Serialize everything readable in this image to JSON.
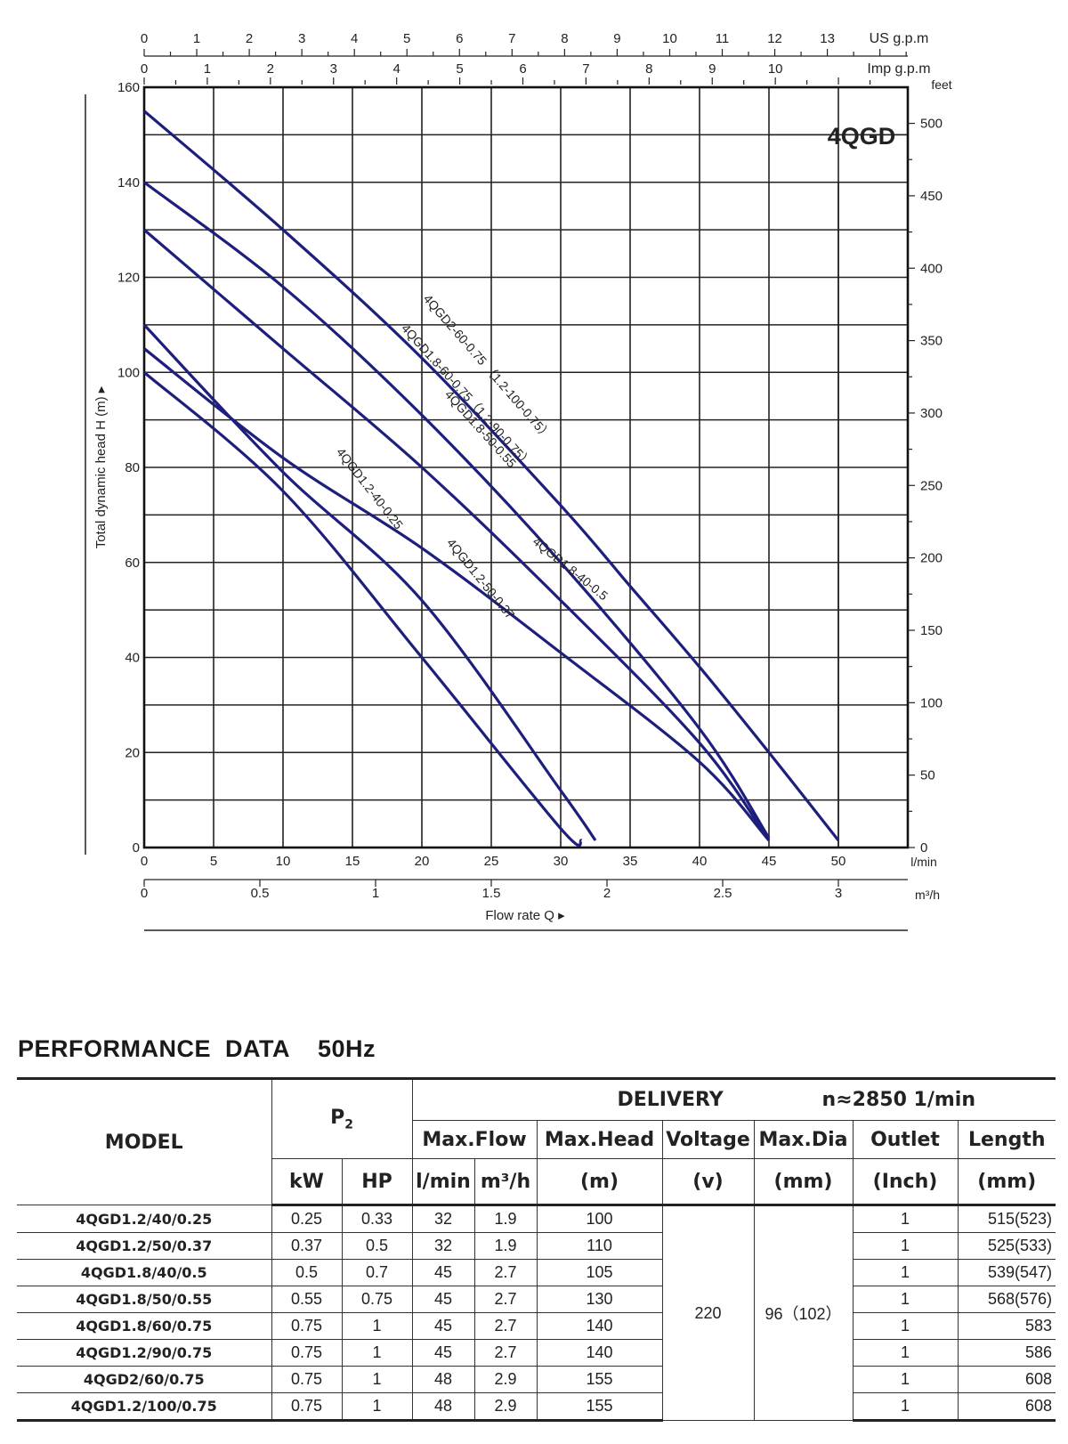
{
  "chart_data": {
    "type": "line",
    "title": "4QGD",
    "xlabel": "Flow  rate  Q ▸",
    "ylabel": "Total dynamic head H (m) ▸",
    "xlim": [
      0,
      55
    ],
    "ylim": [
      0,
      160
    ],
    "x_ticks": [
      "0",
      "5",
      "10",
      "15",
      "20",
      "25",
      "30",
      "35",
      "40",
      "45",
      "50"
    ],
    "x_unit": "l/min",
    "y_ticks": [
      "0",
      "20",
      "40",
      "60",
      "80",
      "100",
      "120",
      "140",
      "160"
    ],
    "secondary_axes": {
      "us_gpm": {
        "unit": "US g.p.m",
        "ticks": [
          "0",
          "1",
          "2",
          "3",
          "4",
          "5",
          "6",
          "7",
          "8",
          "9",
          "10",
          "11",
          "12",
          "13"
        ]
      },
      "imp_gpm": {
        "unit": "Imp g.p.m",
        "ticks": [
          "0",
          "1",
          "2",
          "3",
          "4",
          "5",
          "6",
          "7",
          "8",
          "9",
          "10"
        ]
      },
      "m3h": {
        "unit": "m³/h",
        "ticks": [
          "0",
          "0.5",
          "1",
          "1.5",
          "2",
          "2.5",
          "3"
        ]
      },
      "feet": {
        "unit": "feet",
        "ticks": [
          "0",
          "50",
          "100",
          "150",
          "200",
          "250",
          "300",
          "350",
          "400",
          "450",
          "500"
        ]
      }
    },
    "series": [
      {
        "name": "4QGD2-60-0.75 （1.2-100-0.75）",
        "points": [
          [
            0,
            155
          ],
          [
            10,
            130
          ],
          [
            20,
            103
          ],
          [
            30,
            72
          ],
          [
            35,
            55
          ],
          [
            40,
            38
          ],
          [
            45,
            20
          ],
          [
            50,
            1.5
          ]
        ]
      },
      {
        "name": "4QGD1.8-60-0.75（1.2-90-0.75）",
        "points": [
          [
            0,
            140
          ],
          [
            10,
            118
          ],
          [
            20,
            91
          ],
          [
            30,
            60
          ],
          [
            40,
            25
          ],
          [
            45,
            2
          ]
        ]
      },
      {
        "name": "4QGD1.8-50-0.55",
        "points": [
          [
            0,
            130
          ],
          [
            10,
            105
          ],
          [
            20,
            80
          ],
          [
            30,
            52
          ],
          [
            40,
            22
          ],
          [
            45,
            1.5
          ]
        ]
      },
      {
        "name": "4QGD1.8-40-0.5",
        "points": [
          [
            0,
            105
          ],
          [
            10,
            82
          ],
          [
            20,
            63
          ],
          [
            30,
            41
          ],
          [
            40,
            18
          ],
          [
            45,
            1.5
          ]
        ]
      },
      {
        "name": "4QGD1.2-50-0.37",
        "points": [
          [
            0,
            110
          ],
          [
            10,
            79
          ],
          [
            20,
            52
          ],
          [
            30,
            12
          ],
          [
            32.5,
            1.5
          ]
        ]
      },
      {
        "name": "4QGD1.2-40-0.25",
        "points": [
          [
            0,
            100
          ],
          [
            10,
            75
          ],
          [
            20,
            40
          ],
          [
            30,
            4
          ],
          [
            31.5,
            1.5
          ]
        ]
      }
    ],
    "grid": true
  },
  "performance": {
    "title": "PERFORMANCE  DATA    50Hz",
    "headers": {
      "model": "MODEL",
      "p2": "P",
      "p2_sub": "2",
      "kw": "kW",
      "hp": "HP",
      "delivery": "DELIVERY",
      "speed": "n≈2850 1/min",
      "max_flow": "Max.Flow",
      "lmin": "l/min",
      "m3h": "m³/h",
      "max_head": "Max.Head",
      "m": "(m)",
      "voltage": "Voltage",
      "v": "(v)",
      "max_dia": "Max.Dia",
      "mm_dia": "(mm)",
      "outlet": "Outlet",
      "inch": "(Inch)",
      "length": "Length",
      "mm_len": "(mm)"
    },
    "voltage_value": "220",
    "dia_value": "96（102）",
    "rows": [
      {
        "model": "4QGD1.2/40/0.25",
        "kw": "0.25",
        "hp": "0.33",
        "lmin": "32",
        "m3h": "1.9",
        "head": "100",
        "outlet": "1",
        "length": "515(523)"
      },
      {
        "model": "4QGD1.2/50/0.37",
        "kw": "0.37",
        "hp": "0.5",
        "lmin": "32",
        "m3h": "1.9",
        "head": "110",
        "outlet": "1",
        "length": "525(533)"
      },
      {
        "model": "4QGD1.8/40/0.5",
        "kw": "0.5",
        "hp": "0.7",
        "lmin": "45",
        "m3h": "2.7",
        "head": "105",
        "outlet": "1",
        "length": "539(547)"
      },
      {
        "model": "4QGD1.8/50/0.55",
        "kw": "0.55",
        "hp": "0.75",
        "lmin": "45",
        "m3h": "2.7",
        "head": "130",
        "outlet": "1",
        "length": "568(576)"
      },
      {
        "model": "4QGD1.8/60/0.75",
        "kw": "0.75",
        "hp": "1",
        "lmin": "45",
        "m3h": "2.7",
        "head": "140",
        "outlet": "1",
        "length": "583"
      },
      {
        "model": "4QGD1.2/90/0.75",
        "kw": "0.75",
        "hp": "1",
        "lmin": "45",
        "m3h": "2.7",
        "head": "140",
        "outlet": "1",
        "length": "586"
      },
      {
        "model": "4QGD2/60/0.75",
        "kw": "0.75",
        "hp": "1",
        "lmin": "48",
        "m3h": "2.9",
        "head": "155",
        "outlet": "1",
        "length": "608"
      },
      {
        "model": "4QGD1.2/100/0.75",
        "kw": "0.75",
        "hp": "1",
        "lmin": "48",
        "m3h": "2.9",
        "head": "155",
        "outlet": "1",
        "length": "608"
      }
    ]
  },
  "colors": {
    "curve": "#1e1f7c",
    "title": "#1e2a7a",
    "grid": "#222222"
  }
}
